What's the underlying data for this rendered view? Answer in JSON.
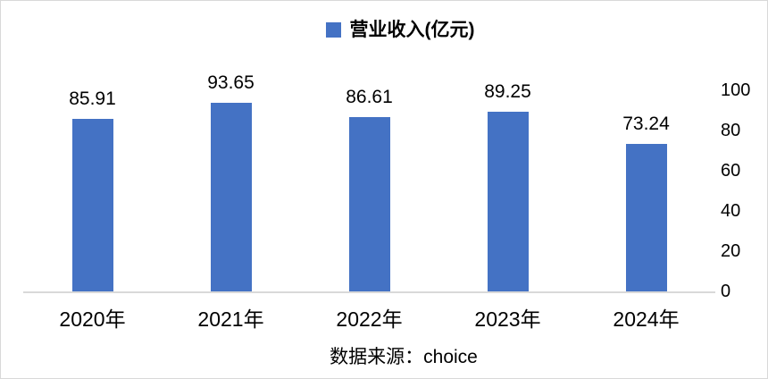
{
  "chart_data": {
    "type": "bar",
    "categories": [
      "2020年",
      "2021年",
      "2022年",
      "2023年",
      "2024年"
    ],
    "values": [
      85.91,
      93.65,
      86.61,
      89.25,
      73.24
    ],
    "value_labels": [
      "85.91",
      "93.65",
      "86.61",
      "89.25",
      "73.24"
    ],
    "legend": "营业收入(亿元)",
    "legend_position": "top-center",
    "ylim": [
      0,
      100
    ],
    "yticks": [
      0,
      20,
      40,
      60,
      80,
      100
    ],
    "ytick_side": "right",
    "grid": false,
    "bar_color": "#4472C4",
    "axis_line_color": "#D9D9D9",
    "text_color": "#000000"
  },
  "source": {
    "text": "数据来源：choice"
  }
}
